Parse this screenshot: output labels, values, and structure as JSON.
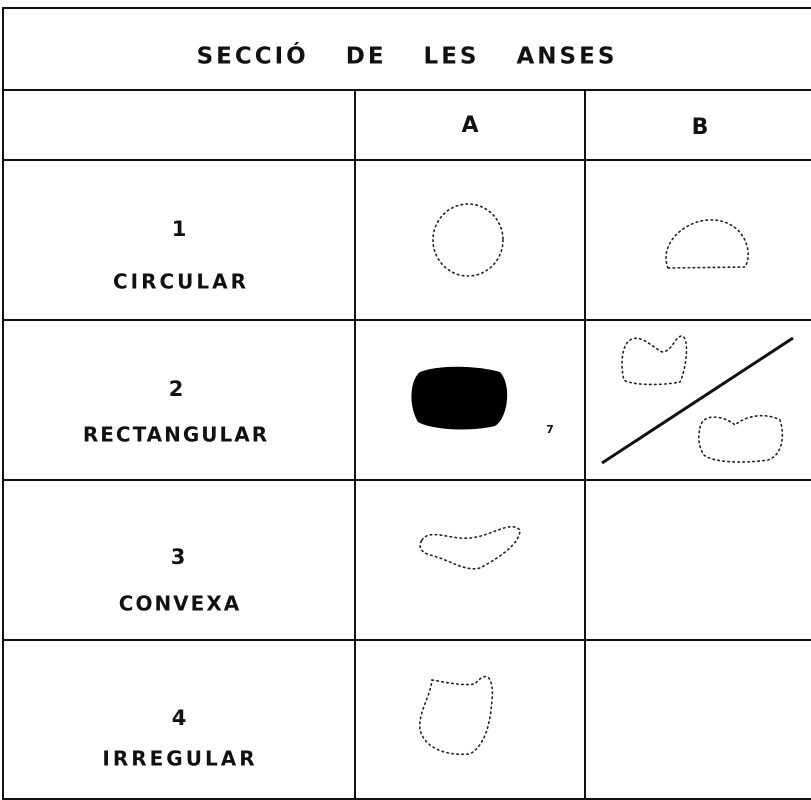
{
  "title": "SECCIÓ DE LES ANSES",
  "columns": [
    "A",
    "B"
  ],
  "rows": [
    {
      "number": "1",
      "label": "CIRCULAR"
    },
    {
      "number": "2",
      "label": "RECTANGULAR"
    },
    {
      "number": "3",
      "label": "CONVEXA"
    },
    {
      "number": "4",
      "label": "IRREGULAR"
    }
  ],
  "figure_number": "7"
}
